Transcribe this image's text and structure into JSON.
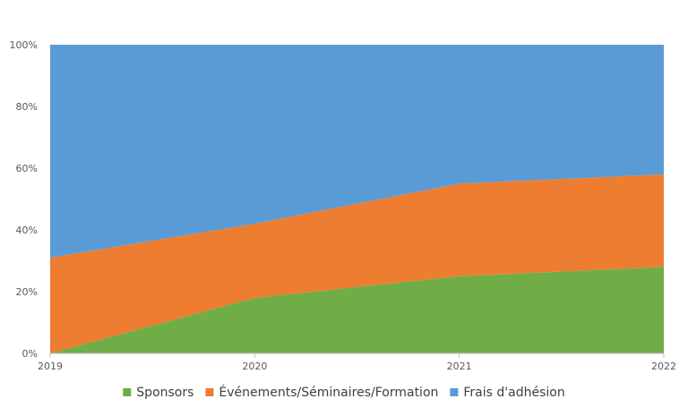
{
  "chart_data": {
    "type": "area",
    "stacked": "percent",
    "categories": [
      "2019",
      "2020",
      "2021",
      "2022"
    ],
    "series": [
      {
        "name": "Sponsors",
        "values": [
          0,
          18,
          25,
          28
        ],
        "color": "#70ad47"
      },
      {
        "name": "Événements/Séminaires/Formation",
        "values": [
          31,
          24,
          30,
          30
        ],
        "color": "#ed7d31"
      },
      {
        "name": "Frais d'adhésion",
        "values": [
          69,
          58,
          45,
          42
        ],
        "color": "#5b9bd5"
      }
    ],
    "yticks": [
      "0%",
      "20%",
      "40%",
      "60%",
      "80%",
      "100%"
    ],
    "ylim": [
      0,
      100
    ],
    "legend_position": "bottom",
    "grid": false
  }
}
